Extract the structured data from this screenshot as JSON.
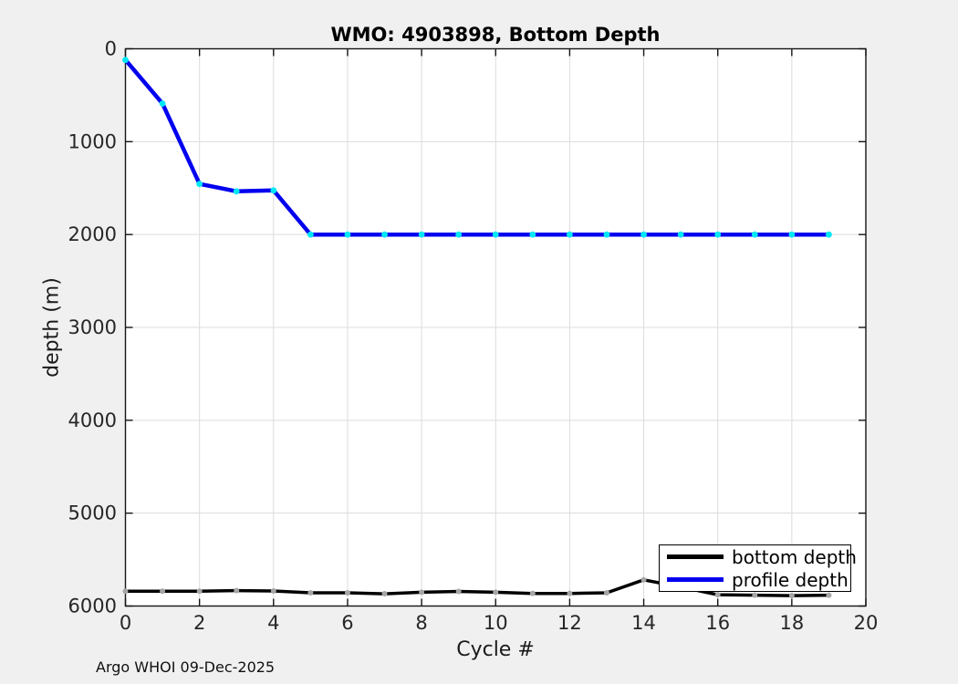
{
  "figure": {
    "background": "#f0f0f0",
    "plot_background": "#ffffff",
    "grid_color": "#dcdcdc",
    "axis_color": "#151515",
    "tick_label_color": "#262626"
  },
  "footer": {
    "text": "Argo WHOI 09-Dec-2025"
  },
  "chart_data": {
    "type": "line",
    "title": "WMO: 4903898, Bottom Depth",
    "xlabel": "Cycle #",
    "ylabel": "depth (m)",
    "x_range": [
      0,
      20
    ],
    "y_range": [
      0,
      6000
    ],
    "y_axis_reversed": true,
    "grid": true,
    "legend_position": "bottom-right",
    "x_ticks": [
      0,
      2,
      4,
      6,
      8,
      10,
      12,
      14,
      16,
      18,
      20
    ],
    "y_ticks": [
      0,
      1000,
      2000,
      3000,
      4000,
      5000,
      6000
    ],
    "x": [
      0,
      1,
      2,
      3,
      4,
      5,
      6,
      7,
      8,
      9,
      10,
      11,
      12,
      13,
      14,
      15,
      16,
      17,
      18,
      19
    ],
    "series": [
      {
        "name": "bottom depth",
        "color": "#000000",
        "marker_color": "#a6a6a6",
        "values": [
          5840,
          5840,
          5840,
          5834,
          5838,
          5858,
          5858,
          5868,
          5852,
          5843,
          5852,
          5864,
          5864,
          5858,
          5718,
          5795,
          5878,
          5883,
          5888,
          5883
        ]
      },
      {
        "name": "profile depth",
        "color": "#0000ee",
        "marker_color": "#00e8f5",
        "values": [
          120,
          590,
          1455,
          1535,
          1525,
          2000,
          2000,
          2000,
          2000,
          2000,
          2000,
          2000,
          2000,
          2000,
          2000,
          2000,
          2000,
          2000,
          2000,
          2000
        ]
      }
    ]
  }
}
